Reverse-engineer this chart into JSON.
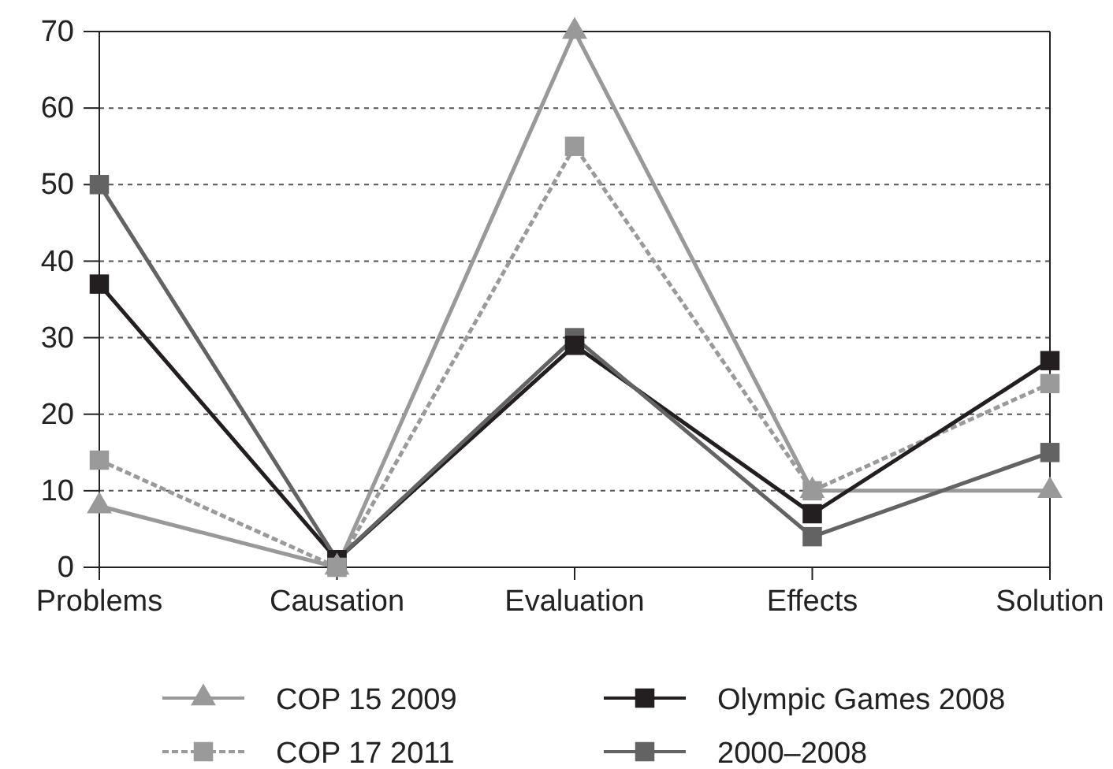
{
  "chart_data": {
    "type": "line",
    "categories": [
      "Problems",
      "Causation",
      "Evaluation",
      "Effects",
      "Solution"
    ],
    "series": [
      {
        "name": "COP 15 2009",
        "color": "#999999",
        "marker": "triangle",
        "line_style": "solid",
        "values": [
          8,
          0,
          70,
          10,
          10
        ]
      },
      {
        "name": "COP 17 2011",
        "color": "#9a9a9a",
        "marker": "square",
        "line_style": "dashed",
        "values": [
          14,
          0,
          55,
          10,
          24
        ]
      },
      {
        "name": "Olympic Games 2008",
        "color": "#231f20",
        "marker": "square",
        "line_style": "solid",
        "values": [
          37,
          1,
          29,
          7,
          27
        ]
      },
      {
        "name": "2000–2008",
        "color": "#636363",
        "marker": "square",
        "line_style": "solid",
        "values": [
          50,
          1,
          30,
          4,
          15
        ]
      }
    ],
    "ylim": [
      0,
      70
    ],
    "yticks": [
      0,
      10,
      20,
      30,
      40,
      50,
      60,
      70
    ],
    "grid": "y",
    "legend": "bottom"
  }
}
